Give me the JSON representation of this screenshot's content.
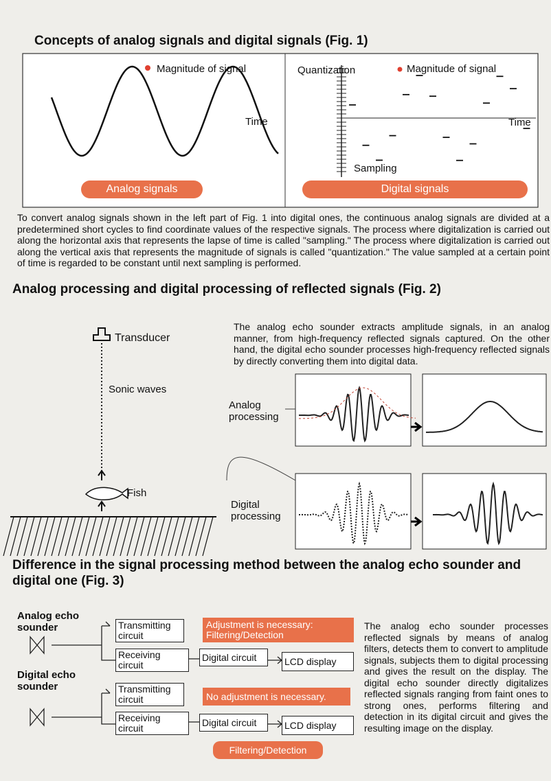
{
  "figure1": {
    "title": "Concepts of analog signals and digital signals (Fig. 1)",
    "analog": {
      "magnitude_label": "Magnitude of signal",
      "time_label": "Time",
      "badge": "Analog signals"
    },
    "digital": {
      "quantization_label": "Quantization",
      "magnitude_label": "Magnitude of signal",
      "time_label": "Time",
      "sampling_label": "Sampling",
      "badge": "Digital signals"
    },
    "caption": "To convert analog signals shown in the left part of Fig. 1 into digital ones, the continuous analog signals are divided at a predetermined short cycles to find coordinate values of the respective signals. The process where digitalization is carried out along the horizontal axis that represents the lapse of time is called \"sampling.\" The process where digitalization is carried out along the vertical axis that represents the magnitude of signals is called \"quantization.\" The value sampled at a certain point of time is regarded to be constant until next sampling is performed."
  },
  "figure2": {
    "title": "Analog processing and digital processing of reflected signals (Fig. 2)",
    "transducer": "Transducer",
    "sonic_waves": "Sonic waves",
    "fish": "Fish",
    "analog_label": "Analog processing",
    "digital_label": "Digital processing",
    "text": "The analog echo sounder extracts amplitude signals, in an analog manner, from high-frequency reflected signals captured. On the other hand, the digital echo sounder processes high-frequency reflected signals by directly converting them into digital data."
  },
  "figure3": {
    "title": "Difference in the signal processing method between the analog echo sounder and digital one (Fig. 3)",
    "analog": {
      "label": "Analog echo sounder",
      "transmitting": "Transmitting circuit",
      "receiving": "Receiving circuit",
      "note": "Adjustment is necessary: Filtering/Detection",
      "digital_circuit": "Digital circuit",
      "display": "LCD display"
    },
    "digital": {
      "label": "Digital echo sounder",
      "transmitting": "Transmitting circuit",
      "receiving": "Receiving circuit",
      "note": "No adjustment is necessary.",
      "digital_circuit": "Digital circuit",
      "display": "LCD display",
      "note2": "Filtering/Detection"
    },
    "text": "The analog echo sounder processes reflected signals by means of analog filters, detects them to convert to amplitude signals, subjects them to digital processing and gives the result on the display. The digital echo sounder directly digitalizes reflected signals ranging from faint ones to strong ones, performs filtering and detection in its digital circuit and gives the resulting image on the display."
  }
}
